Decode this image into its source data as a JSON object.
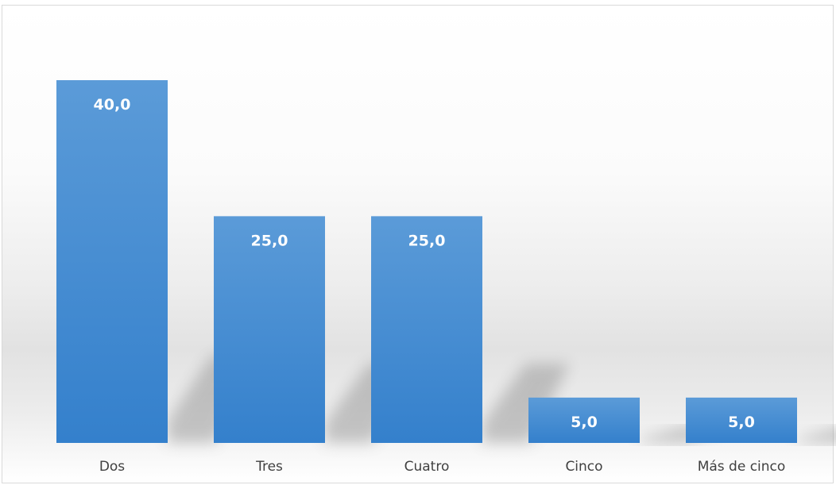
{
  "chart_data": {
    "type": "bar",
    "categories": [
      "Dos",
      "Tres",
      "Cuatro",
      "Cinco",
      "Más de cinco"
    ],
    "values": [
      40.0,
      25.0,
      25.0,
      5.0,
      5.0
    ],
    "data_labels": [
      "40,0",
      "25,0",
      "25,0",
      "5,0",
      "5,0"
    ],
    "title": "",
    "xlabel": "",
    "ylabel": "",
    "ylim": [
      0,
      40
    ],
    "grid": false,
    "legend": "none",
    "bar_color": "#3a86d0"
  }
}
